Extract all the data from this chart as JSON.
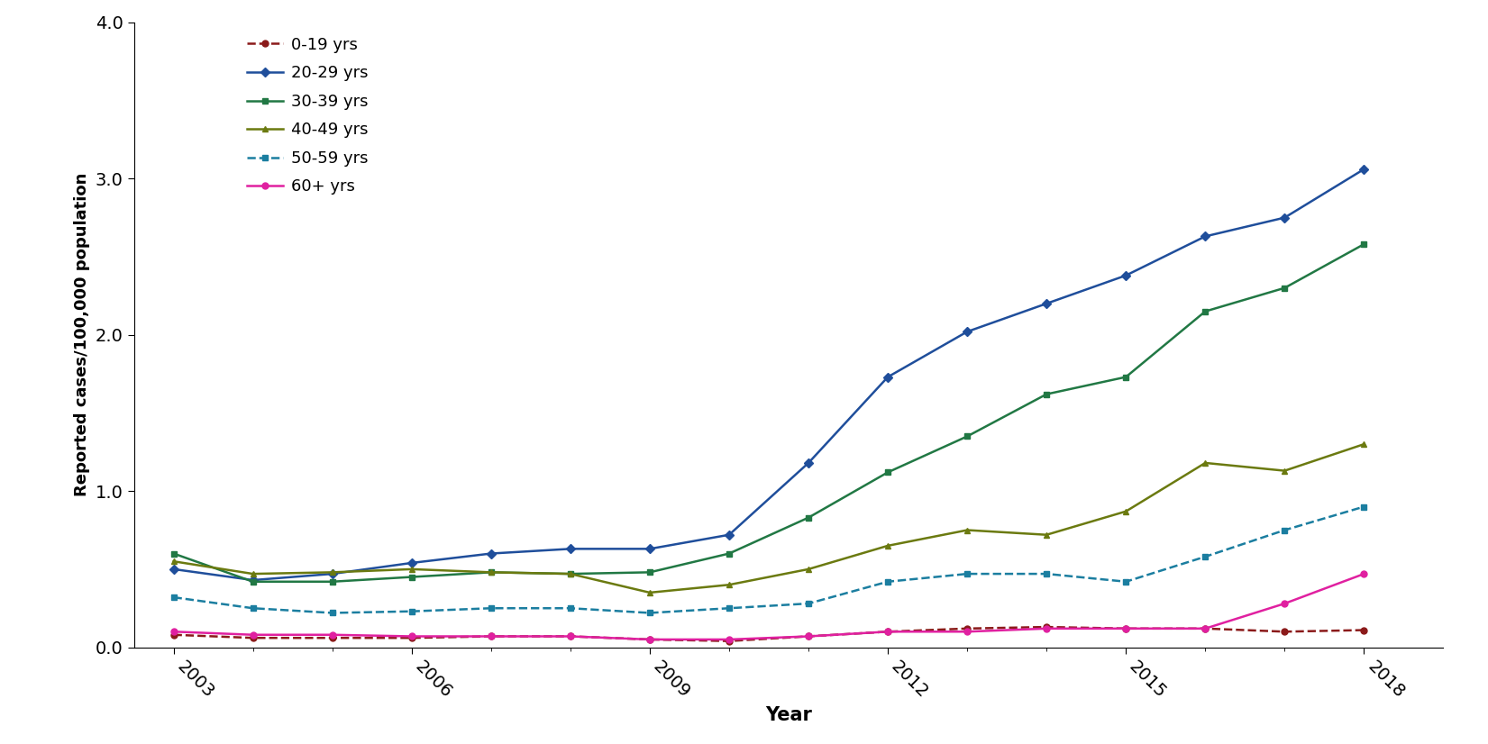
{
  "years": [
    2003,
    2004,
    2005,
    2006,
    2007,
    2008,
    2009,
    2010,
    2011,
    2012,
    2013,
    2014,
    2015,
    2016,
    2017,
    2018
  ],
  "series": {
    "0-19 yrs": {
      "values": [
        0.08,
        0.06,
        0.06,
        0.06,
        0.07,
        0.07,
        0.05,
        0.04,
        0.07,
        0.1,
        0.12,
        0.13,
        0.12,
        0.12,
        0.1,
        0.11
      ],
      "color": "#8B1A1A",
      "marker": "o",
      "linestyle": "--"
    },
    "20-29 yrs": {
      "values": [
        0.5,
        0.43,
        0.47,
        0.54,
        0.6,
        0.63,
        0.63,
        0.72,
        1.18,
        1.73,
        2.02,
        2.2,
        2.38,
        2.63,
        2.75,
        3.06
      ],
      "color": "#1F4E9B",
      "marker": "D",
      "linestyle": "-"
    },
    "30-39 yrs": {
      "values": [
        0.6,
        0.42,
        0.42,
        0.45,
        0.48,
        0.47,
        0.48,
        0.6,
        0.83,
        1.12,
        1.35,
        1.62,
        1.73,
        2.15,
        2.3,
        2.58
      ],
      "color": "#217844",
      "marker": "s",
      "linestyle": "-"
    },
    "40-49 yrs": {
      "values": [
        0.55,
        0.47,
        0.48,
        0.5,
        0.48,
        0.47,
        0.35,
        0.4,
        0.5,
        0.65,
        0.75,
        0.72,
        0.87,
        1.18,
        1.13,
        1.3
      ],
      "color": "#6B7A10",
      "marker": "^",
      "linestyle": "-"
    },
    "50-59 yrs": {
      "values": [
        0.32,
        0.25,
        0.22,
        0.23,
        0.25,
        0.25,
        0.22,
        0.25,
        0.28,
        0.42,
        0.47,
        0.47,
        0.42,
        0.58,
        0.75,
        0.9
      ],
      "color": "#1B7EA0",
      "marker": "s",
      "linestyle": "--"
    },
    "60+ yrs": {
      "values": [
        0.1,
        0.08,
        0.08,
        0.07,
        0.07,
        0.07,
        0.05,
        0.05,
        0.07,
        0.1,
        0.1,
        0.12,
        0.12,
        0.12,
        0.28,
        0.47
      ],
      "color": "#E020A0",
      "marker": "o",
      "linestyle": "-"
    }
  },
  "xlabel": "Year",
  "ylabel": "Reported cases/100,000 population",
  "ylim": [
    0.0,
    4.0
  ],
  "yticks": [
    0.0,
    1.0,
    2.0,
    3.0,
    4.0
  ],
  "xticks": [
    2003,
    2006,
    2009,
    2012,
    2015,
    2018
  ],
  "background_color": "#ffffff",
  "legend_order": [
    "0-19 yrs",
    "20-29 yrs",
    "30-39 yrs",
    "40-49 yrs",
    "50-59 yrs",
    "60+ yrs"
  ]
}
